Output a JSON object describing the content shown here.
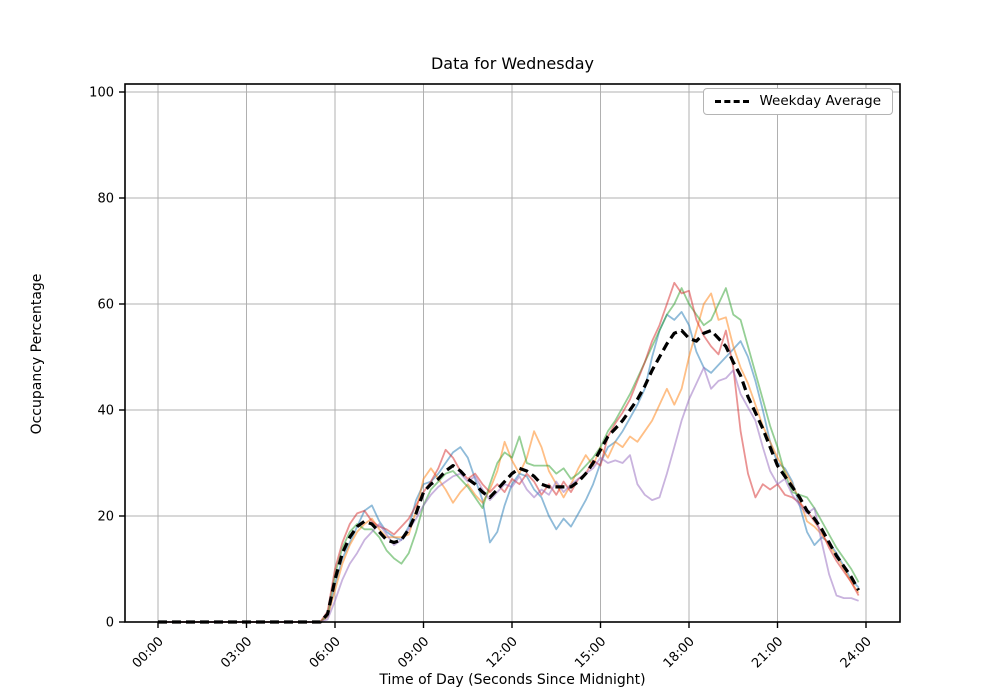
{
  "figure": {
    "window_background": "#ffffff",
    "plot_background": "#ffffff"
  },
  "chart_data": {
    "type": "line",
    "title": "Data for Wednesday",
    "xlabel": "Time of Day (Seconds Since Midnight)",
    "ylabel": "Occupancy Percentage",
    "grid": true,
    "grid_color": "#b0b0b0",
    "ylim": [
      0,
      101.5
    ],
    "y_ticks": [
      0,
      20,
      40,
      60,
      80,
      100
    ],
    "x_ticks": {
      "hours": [
        0,
        3,
        6,
        9,
        12,
        15,
        18,
        21,
        24
      ],
      "labels": [
        "00:00",
        "03:00",
        "06:00",
        "09:00",
        "12:00",
        "15:00",
        "18:00",
        "21:00",
        "24:00"
      ]
    },
    "x_start_hour": 0,
    "x_step_minutes": 15,
    "legend": {
      "position": "upper right",
      "entries": [
        {
          "label": "Weekday Average",
          "color": "#000000",
          "style": "dashed"
        }
      ]
    },
    "series": [
      {
        "name": "weekday-series-1",
        "color": "#1f77b4",
        "alpha": 0.5,
        "width": 1.8,
        "values": [
          0,
          0,
          0,
          0,
          0,
          0,
          0,
          0,
          0,
          0,
          0,
          0,
          0,
          0,
          0,
          0,
          0,
          0,
          0,
          0,
          0,
          0,
          0,
          1,
          7,
          12,
          15,
          18,
          21,
          22,
          19,
          17,
          16,
          15.5,
          18,
          23,
          26,
          26.5,
          28,
          30,
          32,
          33,
          31,
          27,
          23,
          15,
          17,
          22,
          26,
          28,
          27.5,
          25,
          23.5,
          20,
          17.5,
          19.5,
          18,
          20.5,
          23,
          26,
          30,
          33,
          34,
          36,
          38.5,
          41,
          44,
          50,
          55,
          58,
          57,
          58.5,
          56,
          51,
          48,
          47,
          48.5,
          50,
          51.5,
          53,
          50,
          45.5,
          40,
          34,
          30,
          29,
          26.5,
          22,
          17,
          14.5,
          16,
          15,
          13,
          10.5,
          8,
          6.5
        ]
      },
      {
        "name": "weekday-series-2",
        "color": "#ff7f0e",
        "alpha": 0.5,
        "width": 1.8,
        "values": [
          0,
          0,
          0,
          0,
          0,
          0,
          0,
          0,
          0,
          0,
          0,
          0,
          0,
          0,
          0,
          0,
          0,
          0,
          0,
          0,
          0,
          0,
          0,
          1,
          6,
          11,
          14.5,
          17,
          18.5,
          19.5,
          17.5,
          16,
          16,
          16,
          16.5,
          21,
          27,
          29,
          27,
          25,
          22.5,
          24.5,
          26,
          24,
          22.5,
          25,
          28.5,
          34,
          30.5,
          28,
          31,
          36,
          33,
          28.5,
          26,
          23.5,
          26,
          29,
          31.5,
          29.5,
          33,
          31,
          34,
          33,
          35,
          34,
          36,
          38,
          41,
          44,
          41,
          44,
          50,
          55,
          60,
          62,
          57,
          57.5,
          52,
          48,
          45,
          41,
          37,
          34,
          31,
          28.5,
          26,
          23,
          19,
          18,
          16.5,
          14.5,
          12.5,
          10,
          7.5,
          5.5
        ]
      },
      {
        "name": "weekday-series-3",
        "color": "#2ca02c",
        "alpha": 0.5,
        "width": 1.8,
        "values": [
          0,
          0,
          0,
          0,
          0,
          0,
          0,
          0,
          0,
          0,
          0,
          0,
          0,
          0,
          0,
          0,
          0,
          0,
          0,
          0,
          0,
          0,
          0,
          1.5,
          9,
          14,
          17,
          18.5,
          17.5,
          17.5,
          16,
          13.5,
          12,
          11,
          13,
          17,
          22,
          25,
          26.5,
          28,
          28.5,
          27,
          25.5,
          23.5,
          21.5,
          26,
          30,
          32,
          31,
          35,
          30,
          29.5,
          29.5,
          29.5,
          28,
          29,
          27,
          28,
          29.5,
          31,
          33,
          36,
          38,
          40.5,
          43,
          46,
          49,
          52,
          55,
          58,
          60,
          63,
          60,
          58,
          56,
          57,
          60,
          63,
          58,
          57,
          52,
          47,
          42,
          37,
          33,
          28,
          24.5,
          24,
          23.5,
          21.5,
          19,
          16.5,
          14,
          12,
          10,
          7.5
        ]
      },
      {
        "name": "weekday-series-4",
        "color": "#d62728",
        "alpha": 0.5,
        "width": 1.8,
        "values": [
          0,
          0,
          0,
          0,
          0,
          0,
          0,
          0,
          0,
          0,
          0,
          0,
          0,
          0,
          0,
          0,
          0,
          0,
          0,
          0,
          0,
          0,
          0,
          2,
          10,
          15,
          18.5,
          20.5,
          21,
          19,
          18,
          17.5,
          16.5,
          18,
          19.5,
          22,
          24.5,
          26.5,
          29,
          32.5,
          31,
          28.5,
          27,
          28,
          26,
          24.5,
          26,
          24.5,
          27,
          26,
          28,
          26.5,
          24,
          26,
          24,
          26.5,
          24.5,
          27,
          28,
          30.5,
          29.5,
          35,
          37.5,
          39.5,
          42,
          45.5,
          49,
          53,
          56,
          60,
          64,
          62,
          62.5,
          57,
          54,
          52,
          50.5,
          55,
          48,
          36,
          28,
          23.5,
          26,
          25,
          26,
          24,
          23.5,
          22.5,
          21,
          19,
          17,
          14,
          11.5,
          9.5,
          7.5,
          5
        ]
      },
      {
        "name": "weekday-series-5",
        "color": "#9467bd",
        "alpha": 0.5,
        "width": 1.8,
        "values": [
          0,
          0,
          0,
          0,
          0,
          0,
          0,
          0,
          0,
          0,
          0,
          0,
          0,
          0,
          0,
          0,
          0,
          0,
          0,
          0,
          0,
          0,
          0,
          0.5,
          4,
          8,
          11,
          13,
          15.5,
          17,
          18.5,
          16.5,
          14.5,
          15.5,
          17.5,
          19.5,
          22,
          24,
          25.5,
          26.5,
          27.5,
          28,
          26.5,
          27.5,
          25,
          23,
          24.5,
          26,
          25.5,
          27.5,
          25,
          23.5,
          25,
          24,
          26.5,
          24.5,
          26,
          27,
          28,
          29,
          31,
          30,
          30.5,
          30,
          31.5,
          26,
          24,
          23,
          23.5,
          28,
          33,
          38,
          42,
          45,
          48,
          44,
          45.5,
          46,
          47.5,
          43,
          40.5,
          38,
          33,
          28.5,
          26,
          27,
          24,
          22,
          20.5,
          21.5,
          15,
          9,
          5,
          4.5,
          4.5,
          4
        ]
      },
      {
        "name": "Weekday Average",
        "color": "#000000",
        "alpha": 1,
        "width": 3.2,
        "dash": [
          9,
          5
        ],
        "values": [
          0,
          0,
          0,
          0,
          0,
          0,
          0,
          0,
          0,
          0,
          0,
          0,
          0,
          0,
          0,
          0,
          0,
          0,
          0,
          0,
          0,
          0,
          0,
          1.5,
          8,
          13,
          16,
          18,
          19,
          18.5,
          17,
          15.5,
          15,
          15.5,
          17.5,
          20.5,
          24.5,
          26,
          27,
          28.5,
          29.5,
          28.5,
          27,
          26,
          24.5,
          23.5,
          25,
          26.5,
          28,
          29,
          28.5,
          27.5,
          26,
          25.5,
          25.5,
          25.5,
          25.5,
          26.5,
          28,
          30,
          32.5,
          35,
          36.5,
          38,
          40,
          42,
          44.5,
          47.5,
          50,
          52.5,
          54.5,
          55,
          53.5,
          53,
          54.5,
          55,
          53.5,
          52,
          49,
          46.5,
          42.5,
          39.5,
          36.5,
          33,
          29.5,
          27.5,
          25.5,
          23.5,
          21,
          19.5,
          17.5,
          15,
          12.5,
          10.5,
          8.5,
          6
        ]
      }
    ]
  }
}
